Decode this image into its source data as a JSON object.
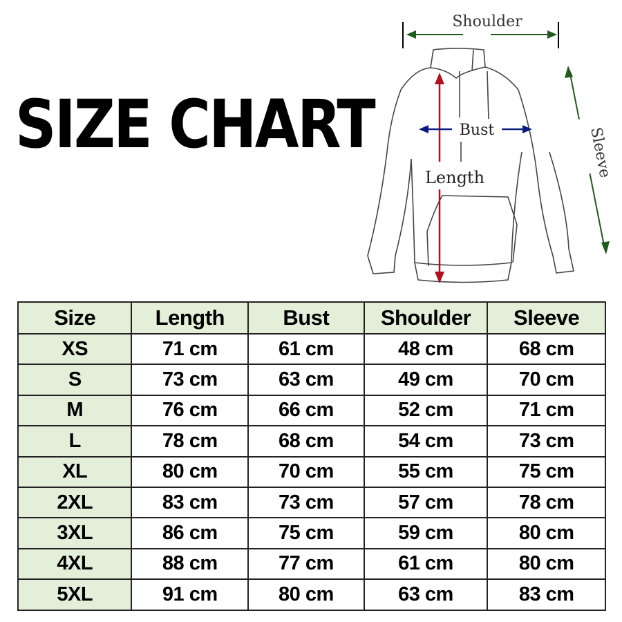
{
  "title": "SIZE CHART",
  "diagram": {
    "labels": {
      "shoulder": "Shoulder",
      "bust": "Bust",
      "length": "Length",
      "sleeve": "Sleeve"
    },
    "colors": {
      "shoulder": "#1f5a1f",
      "sleeve": "#1f5a1f",
      "bust": "#0a1a80",
      "length": "#b01020"
    }
  },
  "table": {
    "headers": [
      "Size",
      "Length",
      "Bust",
      "Shoulder",
      "Sleeve"
    ],
    "header_bg": "#e4efd9",
    "rows": [
      [
        "XS",
        "71 cm",
        "61 cm",
        "48 cm",
        "68 cm"
      ],
      [
        "S",
        "73 cm",
        "63 cm",
        "49 cm",
        "70 cm"
      ],
      [
        "M",
        "76 cm",
        "66 cm",
        "52 cm",
        "71 cm"
      ],
      [
        "L",
        "78 cm",
        "68 cm",
        "54 cm",
        "73 cm"
      ],
      [
        "XL",
        "80 cm",
        "70 cm",
        "55 cm",
        "75 cm"
      ],
      [
        "2XL",
        "83 cm",
        "73 cm",
        "57 cm",
        "78 cm"
      ],
      [
        "3XL",
        "86 cm",
        "75 cm",
        "59 cm",
        "80 cm"
      ],
      [
        "4XL",
        "88 cm",
        "77 cm",
        "61 cm",
        "80 cm"
      ],
      [
        "5XL",
        "91 cm",
        "80 cm",
        "63 cm",
        "83 cm"
      ]
    ]
  }
}
